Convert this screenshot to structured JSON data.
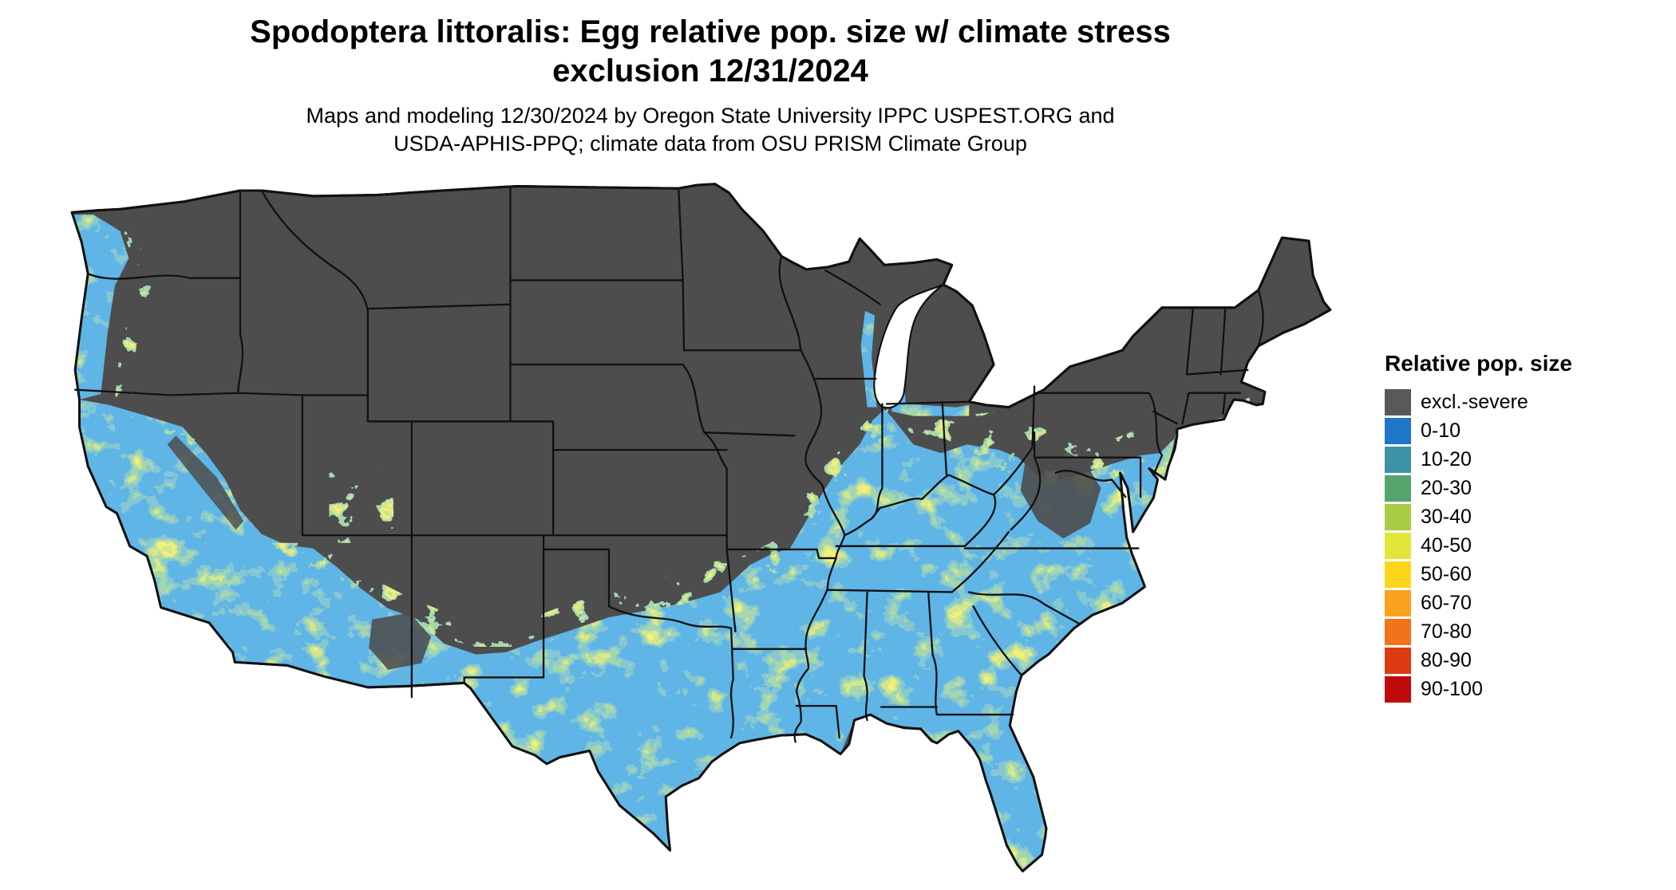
{
  "header": {
    "title": "Spodoptera littoralis: Egg relative pop. size w/ climate stress\nexclusion 12/31/2024",
    "subtitle": "Maps and modeling 12/30/2024 by Oregon State University IPPC USPEST.ORG and\nUSDA-APHIS-PPQ; climate data from OSU PRISM Climate Group"
  },
  "legend": {
    "title": "Relative pop. size",
    "entries": [
      {
        "label": "excl.-severe",
        "color": "#595959"
      },
      {
        "label": "0-10",
        "color": "#1d76c8"
      },
      {
        "label": "10-20",
        "color": "#3d93a5"
      },
      {
        "label": "20-30",
        "color": "#55a46e"
      },
      {
        "label": "30-40",
        "color": "#a9cc45"
      },
      {
        "label": "40-50",
        "color": "#e2e638"
      },
      {
        "label": "50-60",
        "color": "#fdd51a"
      },
      {
        "label": "60-70",
        "color": "#f9a21d"
      },
      {
        "label": "70-80",
        "color": "#f1731c"
      },
      {
        "label": "80-90",
        "color": "#de3b12"
      },
      {
        "label": "90-100",
        "color": "#c00b0b"
      }
    ]
  },
  "map": {
    "excluded_color": "#4d4d4d",
    "suitable_base_color": "#1d76c8",
    "border_color": "#111111"
  }
}
